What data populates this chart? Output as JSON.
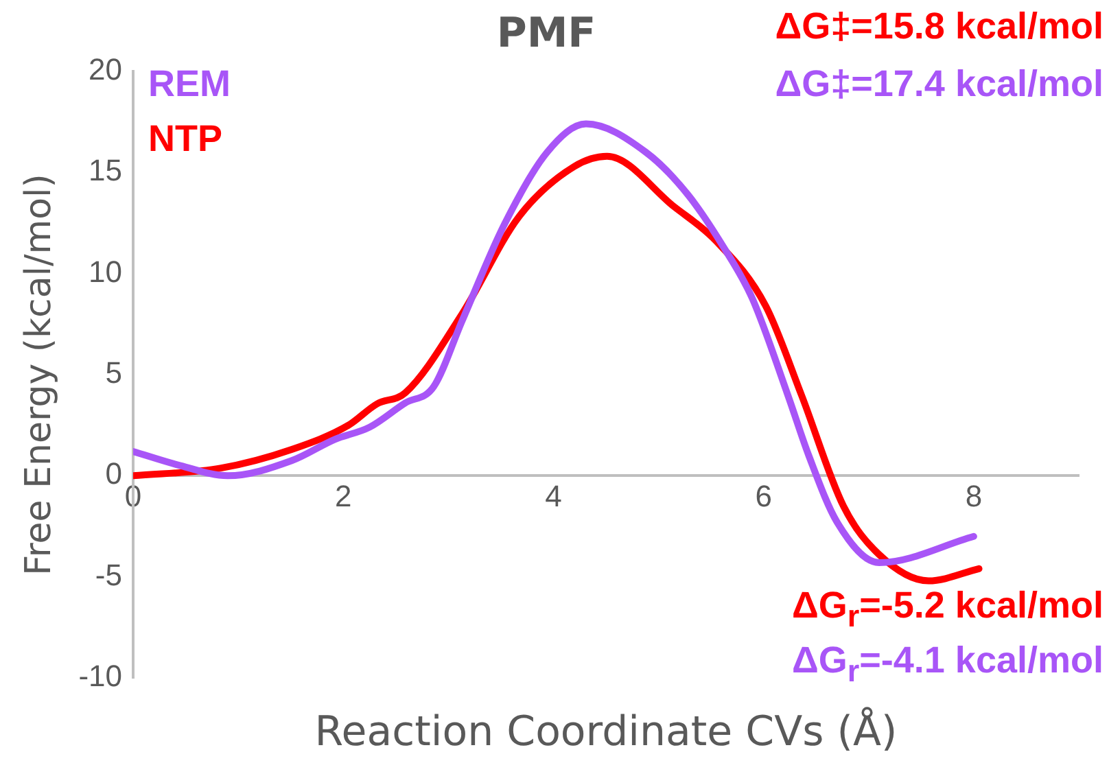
{
  "chart_data": {
    "type": "line",
    "title": "PMF",
    "xlabel": "Reaction Coordinate CVs (Å)",
    "ylabel": "Free Energy (kcal/mol)",
    "xlim": [
      0,
      9
    ],
    "xticks": [
      0,
      2,
      4,
      6,
      8
    ],
    "ylim": [
      -10,
      20
    ],
    "yticks": [
      -10,
      -5,
      0,
      5,
      10,
      15,
      20
    ],
    "grid": false,
    "marker": "none",
    "line_style": "solid",
    "series": [
      {
        "name": "REM",
        "color": "#a855f7",
        "x": [
          0,
          0.45,
          0.9,
          1.51,
          1.92,
          2.25,
          2.59,
          2.86,
          3.13,
          3.53,
          3.94,
          4.31,
          4.88,
          5.28,
          5.62,
          5.89,
          6.23,
          6.43,
          6.7,
          7.1,
          8.0
        ],
        "values": [
          1.2,
          0.5,
          0,
          0.75,
          1.8,
          2.4,
          3.6,
          4.4,
          7.65,
          12.4,
          16,
          17.4,
          16,
          13.9,
          11.3,
          8.8,
          4,
          1,
          -2.3,
          -4.3,
          -3
        ]
      },
      {
        "name": "NTP",
        "color": "#ff0000",
        "x": [
          0,
          0.83,
          1.51,
          2.05,
          2.32,
          2.59,
          3.13,
          3.67,
          4.2,
          4.51,
          5.15,
          5.55,
          6.02,
          6.36,
          6.76,
          7.1,
          7.57,
          8.05
        ],
        "values": [
          0,
          0.37,
          1.3,
          2.5,
          3.55,
          4.1,
          8,
          12.8,
          15.3,
          15.8,
          13.3,
          11.6,
          8.4,
          4,
          -1.5,
          -3.9,
          -5.2,
          -4.6
        ]
      }
    ],
    "annotations": [
      "ΔG‡=15.8 kcal/mol",
      "ΔG‡=17.4 kcal/mol",
      "ΔG$_{r}$=-5.2 kcal/mol",
      "ΔG$_{r}$=-4.1 kcal/mol"
    ]
  }
}
